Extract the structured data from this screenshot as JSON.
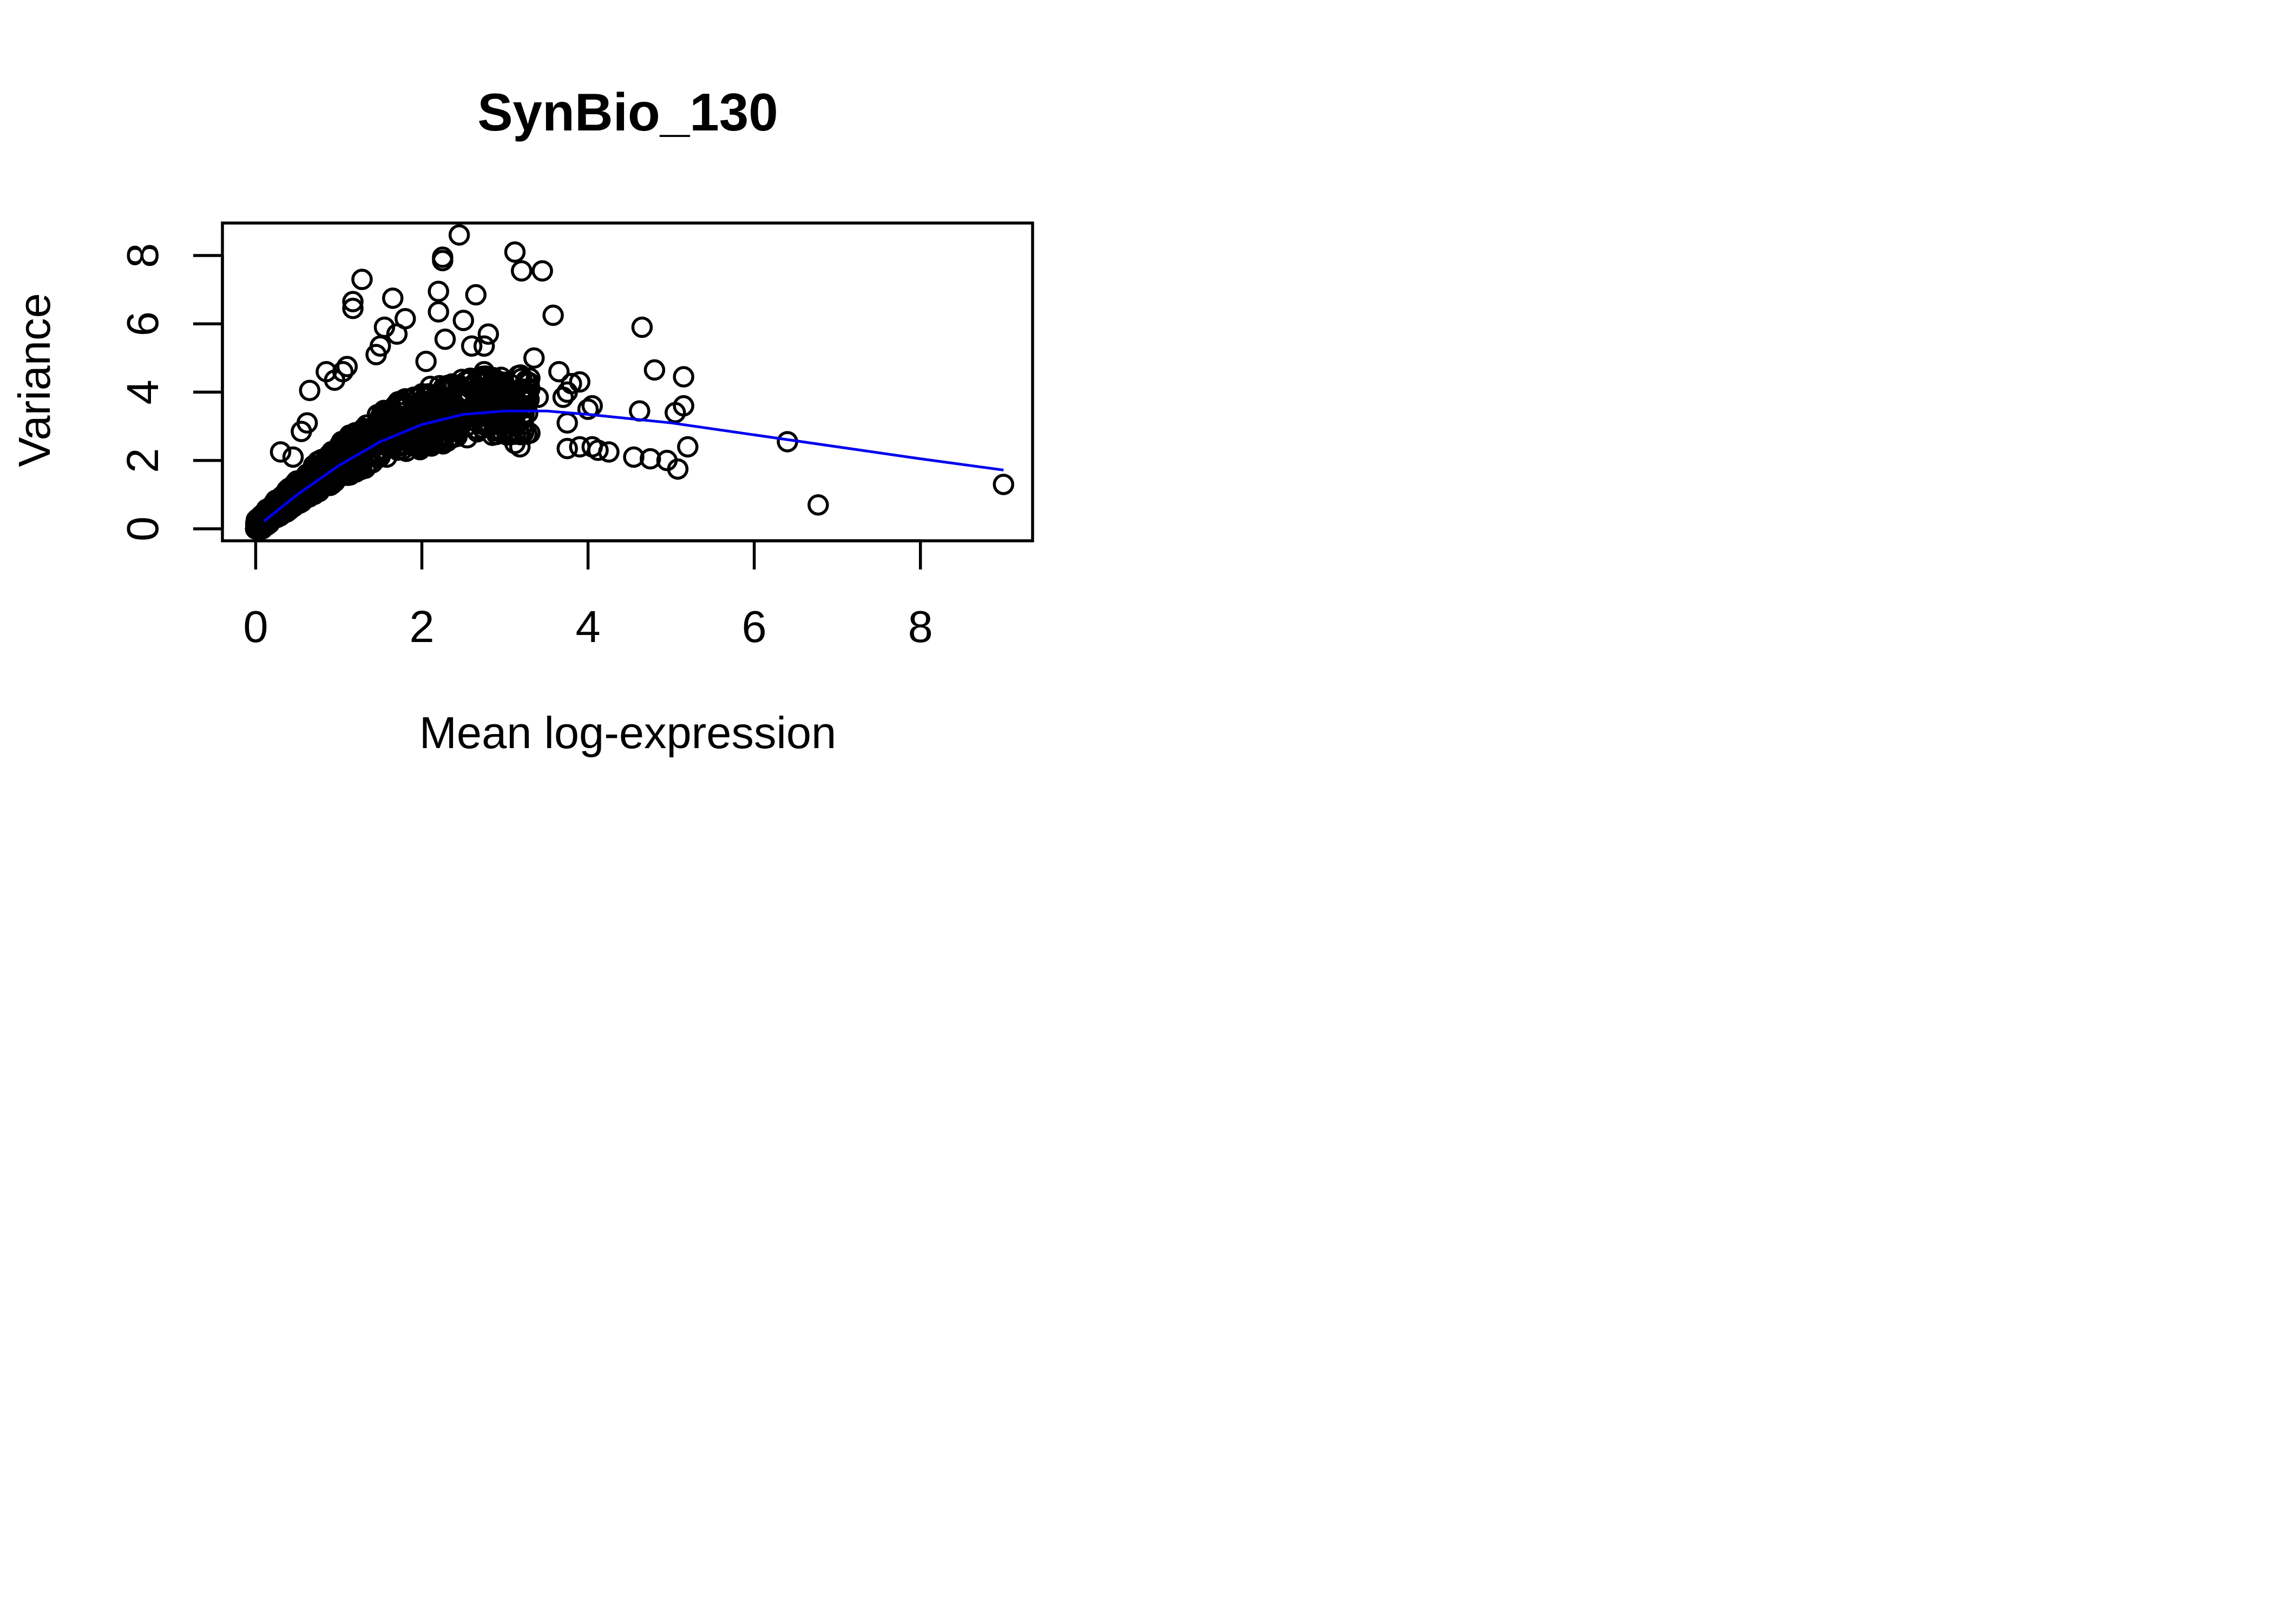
{
  "chart_data": {
    "type": "scatter",
    "title": "SynBio_130",
    "xlabel": "Mean log-expression",
    "ylabel": "Variance",
    "xlim": [
      -0.4,
      9.35
    ],
    "ylim": [
      -0.35,
      8.95
    ],
    "x_ticks": [
      "0",
      "2",
      "4",
      "6",
      "8"
    ],
    "y_ticks": [
      "0",
      "2",
      "4",
      "6",
      "8"
    ],
    "grid": false,
    "legend": "none",
    "point_color": "#000000",
    "trend_color": "#0000ee",
    "points": [
      [
        2.45,
        8.6
      ],
      [
        3.12,
        8.1
      ],
      [
        2.25,
        7.95
      ],
      [
        2.25,
        7.85
      ],
      [
        3.2,
        7.55
      ],
      [
        3.45,
        7.55
      ],
      [
        1.28,
        7.3
      ],
      [
        1.65,
        6.75
      ],
      [
        1.17,
        6.65
      ],
      [
        1.17,
        6.45
      ],
      [
        2.2,
        6.95
      ],
      [
        2.65,
        6.85
      ],
      [
        1.8,
        6.15
      ],
      [
        2.5,
        6.1
      ],
      [
        3.58,
        6.25
      ],
      [
        1.55,
        5.9
      ],
      [
        2.2,
        6.35
      ],
      [
        4.65,
        5.9
      ],
      [
        1.7,
        5.7
      ],
      [
        2.28,
        5.55
      ],
      [
        2.8,
        5.7
      ],
      [
        2.75,
        5.35
      ],
      [
        2.6,
        5.35
      ],
      [
        1.5,
        5.35
      ],
      [
        1.45,
        5.1
      ],
      [
        3.35,
        5.0
      ],
      [
        2.05,
        4.9
      ],
      [
        2.75,
        4.6
      ],
      [
        3.65,
        4.6
      ],
      [
        4.8,
        4.65
      ],
      [
        5.15,
        4.45
      ],
      [
        3.2,
        4.4
      ],
      [
        3.9,
        4.3
      ],
      [
        3.8,
        4.25
      ],
      [
        3.3,
        4.1
      ],
      [
        0.65,
        4.05
      ],
      [
        3.75,
        4.0
      ],
      [
        3.7,
        3.85
      ],
      [
        3.0,
        4.2
      ],
      [
        3.4,
        3.85
      ],
      [
        4.05,
        3.6
      ],
      [
        4.0,
        3.5
      ],
      [
        4.62,
        3.45
      ],
      [
        5.15,
        3.6
      ],
      [
        5.05,
        3.4
      ],
      [
        3.75,
        3.1
      ],
      [
        3.3,
        2.8
      ],
      [
        3.12,
        2.5
      ],
      [
        3.18,
        2.4
      ],
      [
        3.75,
        2.35
      ],
      [
        3.9,
        2.4
      ],
      [
        4.05,
        2.4
      ],
      [
        4.12,
        2.3
      ],
      [
        4.25,
        2.25
      ],
      [
        4.55,
        2.1
      ],
      [
        4.75,
        2.05
      ],
      [
        4.95,
        2.0
      ],
      [
        5.08,
        1.75
      ],
      [
        5.2,
        2.4
      ],
      [
        6.4,
        2.55
      ],
      [
        6.77,
        0.7
      ],
      [
        9.0,
        1.3
      ],
      [
        0.85,
        4.6
      ],
      [
        1.05,
        4.6
      ],
      [
        1.1,
        4.75
      ],
      [
        0.95,
        4.35
      ],
      [
        0.3,
        2.25
      ],
      [
        0.55,
        2.85
      ],
      [
        0.62,
        3.1
      ],
      [
        0.45,
        2.1
      ]
    ],
    "trend": [
      [
        0.1,
        0.22
      ],
      [
        0.5,
        1.0
      ],
      [
        1.0,
        1.85
      ],
      [
        1.5,
        2.55
      ],
      [
        2.0,
        3.05
      ],
      [
        2.5,
        3.35
      ],
      [
        3.0,
        3.45
      ],
      [
        3.5,
        3.45
      ],
      [
        4.0,
        3.35
      ],
      [
        5.0,
        3.1
      ],
      [
        6.0,
        2.75
      ],
      [
        7.0,
        2.4
      ],
      [
        8.0,
        2.05
      ],
      [
        9.0,
        1.72
      ]
    ]
  }
}
